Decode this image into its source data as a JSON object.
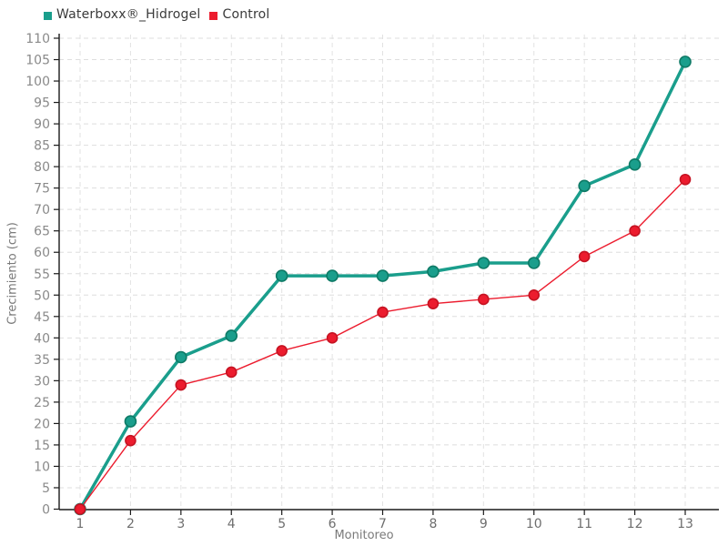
{
  "chart_data": {
    "type": "line",
    "title": "",
    "xlabel": "Monitoreo",
    "ylabel": "Crecimiento (cm)",
    "x": [
      1,
      2,
      3,
      4,
      5,
      6,
      7,
      8,
      9,
      10,
      11,
      12,
      13
    ],
    "ylim": [
      0,
      110
    ],
    "ytick_step": 5,
    "grid": true,
    "legend_position": "top-left",
    "series": [
      {
        "name": "Waterboxx®_Hidrogel",
        "color": "#1a9e8c",
        "marker_stroke": "#0e7a66",
        "line_width": 3.5,
        "marker_radius": 6,
        "values": [
          0,
          20.5,
          35.5,
          40.5,
          54.5,
          54.5,
          54.5,
          55.5,
          57.5,
          57.5,
          75.5,
          80.5,
          104.5
        ]
      },
      {
        "name": "Control",
        "color": "#ec1c2e",
        "marker_stroke": "#c51322",
        "line_width": 1.4,
        "marker_radius": 5.5,
        "values": [
          0,
          16,
          29,
          32,
          37,
          40,
          46,
          48,
          49,
          50,
          59,
          65,
          77
        ]
      }
    ],
    "colors": {
      "axis": "#1a1a1a",
      "grid": "#dedede",
      "tick_label": "#8a8a8a",
      "axis_label": "#7a7a7a",
      "legend_text": "#3a3a3a",
      "background": "#ffffff"
    }
  }
}
